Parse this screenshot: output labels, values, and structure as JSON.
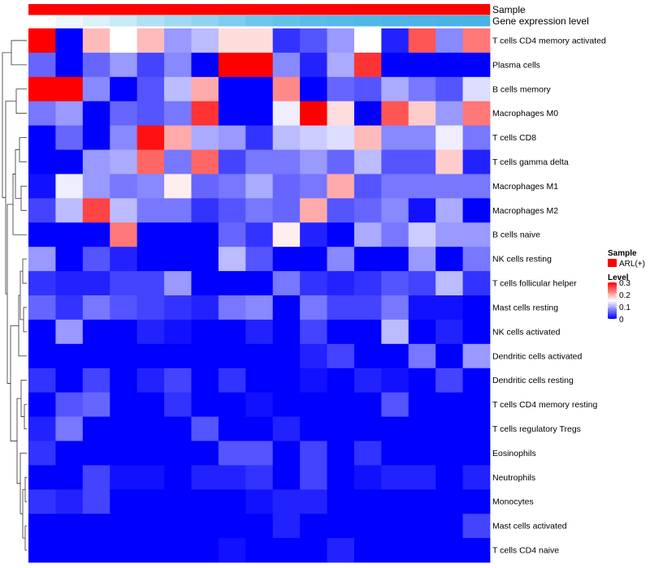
{
  "chart_data": {
    "type": "heatmap",
    "annotation_labels": [
      "Sample",
      "Gene expression level"
    ],
    "sample_color": "#ff0000",
    "expression_colors": [
      "#ffffff",
      "#eef7fb",
      "#dcf0f9",
      "#c8e9f6",
      "#b2e0f3",
      "#a0d9f1",
      "#8fd3f0",
      "#7fcdee",
      "#6fc6ec",
      "#64c1ea",
      "#5bbde9",
      "#55bae8",
      "#50b8e7",
      "#4db6e6",
      "#4ab5e6",
      "#48b4e5",
      "#46b3e5"
    ],
    "row_labels": [
      "T cells CD4 memory activated",
      "Plasma cells",
      "B cells memory",
      "Macrophages M0",
      "T cells CD8",
      "T cells gamma delta",
      "Macrophages M1",
      "Macrophages M2",
      "B cells naive",
      "NK cells resting",
      "T cells follicular helper",
      "Mast cells resting",
      "NK cells activated",
      "Dendritic cells activated",
      "Dendritic cells resting",
      "T cells CD4 memory resting",
      "T cells regulatory  Tregs",
      "Eosinophils",
      "Neutrophils",
      "Monocytes",
      "Mast cells activated",
      "T cells CD4 naive"
    ],
    "values": [
      [
        0.31,
        0.0,
        0.19,
        0.15,
        0.19,
        0.09,
        0.11,
        0.17,
        0.17,
        0.03,
        0.05,
        0.09,
        0.15,
        0.02,
        0.25,
        0.08,
        0.23
      ],
      [
        0.06,
        0.0,
        0.06,
        0.09,
        0.04,
        0.08,
        0.0,
        0.31,
        0.32,
        0.08,
        0.02,
        0.1,
        0.27,
        0.0,
        0.0,
        0.0,
        0.0
      ],
      [
        0.31,
        0.31,
        0.08,
        0.0,
        0.05,
        0.11,
        0.2,
        0.0,
        0.0,
        0.22,
        0.0,
        0.06,
        0.05,
        0.1,
        0.07,
        0.05,
        0.13
      ],
      [
        0.07,
        0.09,
        0.0,
        0.06,
        0.05,
        0.07,
        0.27,
        0.0,
        0.0,
        0.14,
        0.32,
        0.17,
        0.0,
        0.25,
        0.18,
        0.09,
        0.23
      ],
      [
        0.0,
        0.06,
        0.0,
        0.08,
        0.29,
        0.2,
        0.1,
        0.09,
        0.03,
        0.11,
        0.12,
        0.13,
        0.19,
        0.08,
        0.08,
        0.14,
        0.07
      ],
      [
        0.0,
        0.0,
        0.09,
        0.1,
        0.24,
        0.07,
        0.24,
        0.04,
        0.07,
        0.07,
        0.09,
        0.06,
        0.11,
        0.05,
        0.05,
        0.18,
        0.02
      ],
      [
        0.01,
        0.14,
        0.09,
        0.07,
        0.08,
        0.16,
        0.06,
        0.07,
        0.1,
        0.06,
        0.07,
        0.2,
        0.05,
        0.07,
        0.07,
        0.07,
        0.07
      ],
      [
        0.04,
        0.11,
        0.26,
        0.11,
        0.07,
        0.07,
        0.03,
        0.05,
        0.07,
        0.06,
        0.2,
        0.05,
        0.06,
        0.08,
        0.01,
        0.1,
        0.0
      ],
      [
        0.0,
        0.0,
        0.0,
        0.23,
        0.0,
        0.0,
        0.0,
        0.06,
        0.03,
        0.16,
        0.02,
        0.0,
        0.1,
        0.07,
        0.12,
        0.09,
        0.09
      ],
      [
        0.09,
        0.0,
        0.05,
        0.02,
        0.0,
        0.0,
        0.0,
        0.11,
        0.05,
        0.0,
        0.0,
        0.08,
        0.0,
        0.0,
        0.09,
        0.0,
        0.07
      ],
      [
        0.03,
        0.02,
        0.02,
        0.04,
        0.04,
        0.09,
        0.0,
        0.0,
        0.0,
        0.07,
        0.03,
        0.02,
        0.03,
        0.05,
        0.04,
        0.11,
        0.03
      ],
      [
        0.06,
        0.03,
        0.07,
        0.05,
        0.04,
        0.03,
        0.02,
        0.07,
        0.08,
        0.0,
        0.07,
        0.04,
        0.04,
        0.07,
        0.01,
        0.01,
        0.0
      ],
      [
        0.0,
        0.09,
        0.0,
        0.0,
        0.02,
        0.01,
        0.0,
        0.0,
        0.02,
        0.0,
        0.04,
        0.0,
        0.0,
        0.11,
        0.0,
        0.02,
        0.0
      ],
      [
        0.0,
        0.0,
        0.0,
        0.0,
        0.0,
        0.0,
        0.0,
        0.0,
        0.0,
        0.0,
        0.02,
        0.04,
        0.0,
        0.0,
        0.07,
        0.0,
        0.09
      ],
      [
        0.03,
        0.0,
        0.04,
        0.0,
        0.02,
        0.04,
        0.0,
        0.03,
        0.0,
        0.0,
        0.01,
        0.0,
        0.02,
        0.01,
        0.0,
        0.04,
        0.0
      ],
      [
        0.0,
        0.05,
        0.06,
        0.0,
        0.0,
        0.03,
        0.0,
        0.0,
        0.01,
        0.0,
        0.0,
        0.0,
        0.0,
        0.05,
        0.0,
        0.0,
        0.0
      ],
      [
        0.02,
        0.07,
        0.0,
        0.0,
        0.0,
        0.0,
        0.05,
        0.0,
        0.0,
        0.02,
        0.0,
        0.0,
        0.0,
        0.0,
        0.0,
        0.0,
        0.0
      ],
      [
        0.03,
        0.0,
        0.0,
        0.0,
        0.0,
        0.0,
        0.0,
        0.05,
        0.05,
        0.0,
        0.04,
        0.0,
        0.03,
        0.0,
        0.0,
        0.0,
        0.0
      ],
      [
        0.0,
        0.0,
        0.04,
        0.01,
        0.01,
        0.0,
        0.02,
        0.02,
        0.03,
        0.0,
        0.04,
        0.0,
        0.01,
        0.02,
        0.02,
        0.0,
        0.02
      ],
      [
        0.03,
        0.02,
        0.04,
        0.0,
        0.0,
        0.0,
        0.0,
        0.0,
        0.01,
        0.02,
        0.02,
        0.0,
        0.0,
        0.0,
        0.0,
        0.0,
        0.0
      ],
      [
        0.0,
        0.0,
        0.0,
        0.0,
        0.0,
        0.0,
        0.0,
        0.0,
        0.0,
        0.02,
        0.0,
        0.0,
        0.0,
        0.0,
        0.0,
        0.0,
        0.04
      ],
      [
        0.0,
        0.0,
        0.0,
        0.0,
        0.0,
        0.0,
        0.0,
        0.01,
        0.0,
        0.0,
        0.0,
        0.02,
        0.0,
        0.0,
        0.0,
        0.0,
        0.0
      ]
    ],
    "color_scale": {
      "min": 0,
      "max": 0.3,
      "stops": [
        {
          "value": 0,
          "color": "#0000ff"
        },
        {
          "value": 0.15,
          "color": "#ffffff"
        },
        {
          "value": 0.3,
          "color": "#ff0000"
        }
      ]
    },
    "legend": {
      "sample_title": "Sample",
      "sample_items": [
        {
          "label": "ARL(+)",
          "color": "#ff0000"
        }
      ],
      "level_title": "Level",
      "level_ticks": [
        {
          "value": 0.3,
          "label": "0.3"
        },
        {
          "value": 0.2,
          "label": "0.2"
        },
        {
          "value": 0.1,
          "label": "0.1"
        },
        {
          "value": 0,
          "label": "0"
        }
      ]
    },
    "row_dendrogram": true
  }
}
